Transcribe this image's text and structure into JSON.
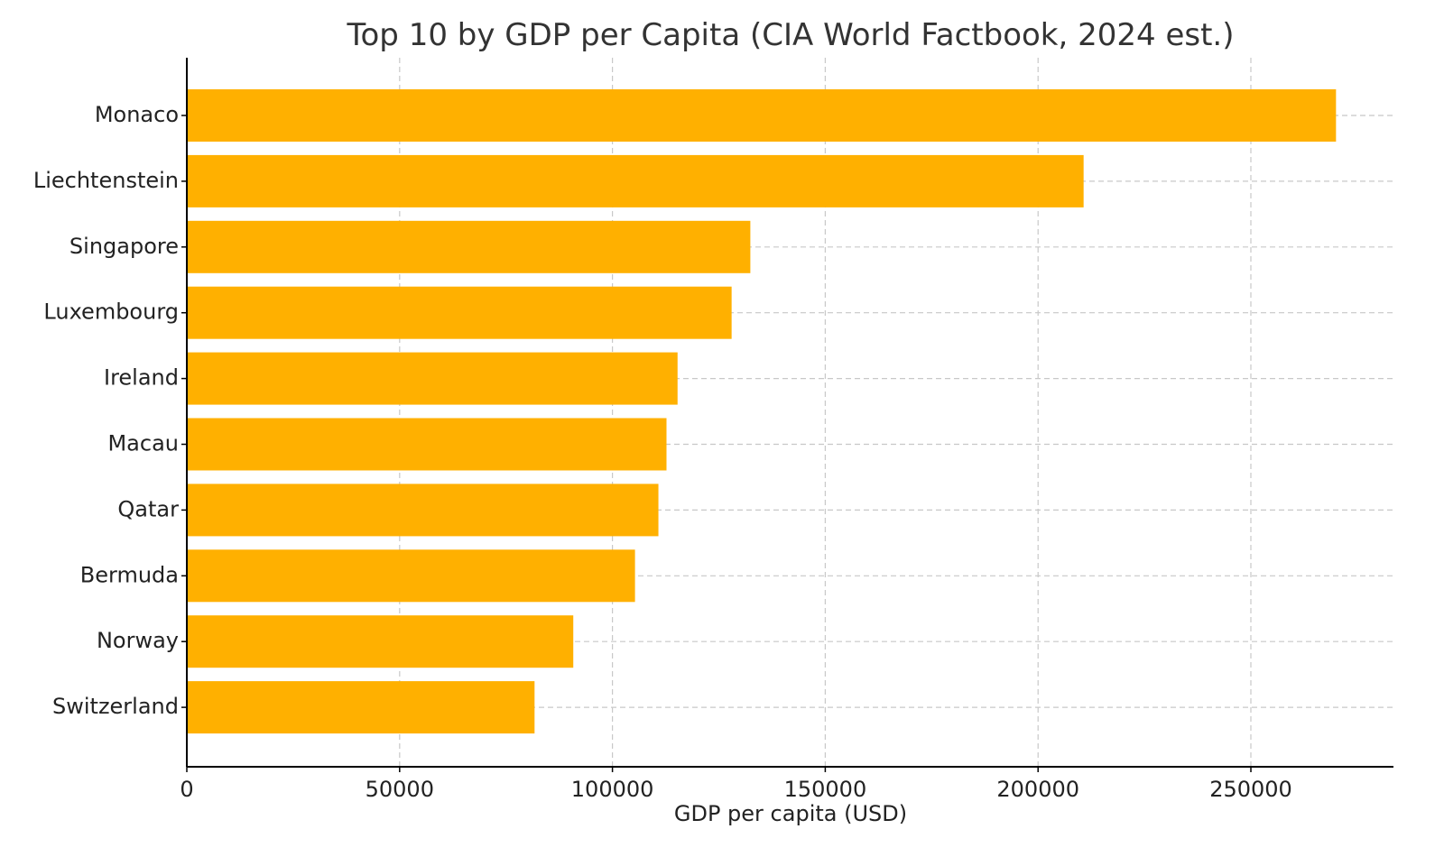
{
  "chart_data": {
    "type": "bar",
    "orientation": "horizontal",
    "title": "Top 10 by GDP per Capita (CIA World Factbook, 2024 est.)",
    "xlabel": "GDP per capita (USD)",
    "ylabel": "",
    "categories": [
      "Monaco",
      "Liechtenstein",
      "Singapore",
      "Luxembourg",
      "Ireland",
      "Macau",
      "Qatar",
      "Bermuda",
      "Norway",
      "Switzerland"
    ],
    "values": [
      270000,
      210700,
      132400,
      128000,
      115300,
      112700,
      110800,
      105300,
      90800,
      81700
    ],
    "xlim": [
      0,
      283500
    ],
    "xticks": [
      0,
      50000,
      100000,
      150000,
      200000,
      250000
    ],
    "xtick_labels": [
      "0",
      "50000",
      "100000",
      "150000",
      "200000",
      "250000"
    ],
    "grid": true,
    "legend": "none",
    "colors": {
      "bar": "#FFB000",
      "grid": "#c8c8c8",
      "axis": "#000000",
      "title": "#333333"
    }
  }
}
